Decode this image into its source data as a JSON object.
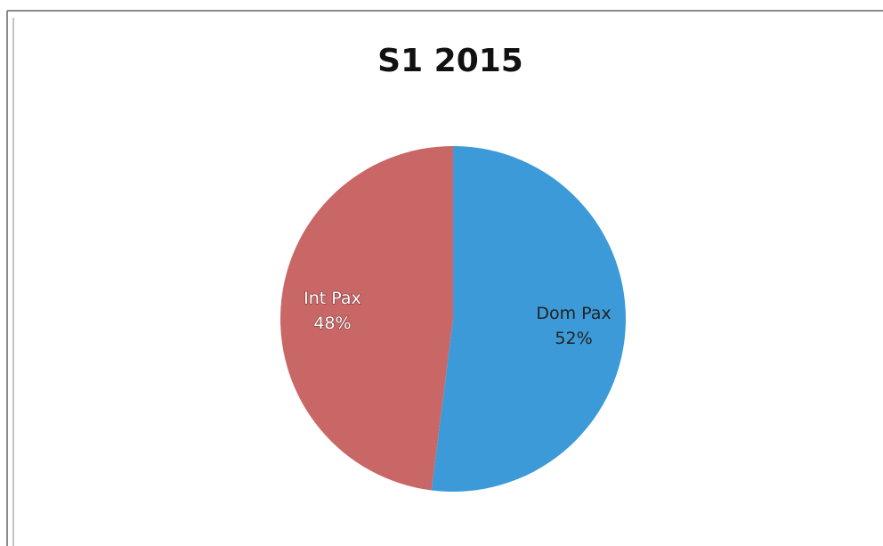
{
  "chart_data": {
    "type": "pie",
    "title": "S1 2015",
    "categories": [
      "Dom Pax",
      "Int Pax"
    ],
    "values": [
      52,
      48
    ],
    "value_labels": [
      "52%",
      "48%"
    ],
    "colors": [
      "#3d9ad8",
      "#c96666"
    ]
  }
}
